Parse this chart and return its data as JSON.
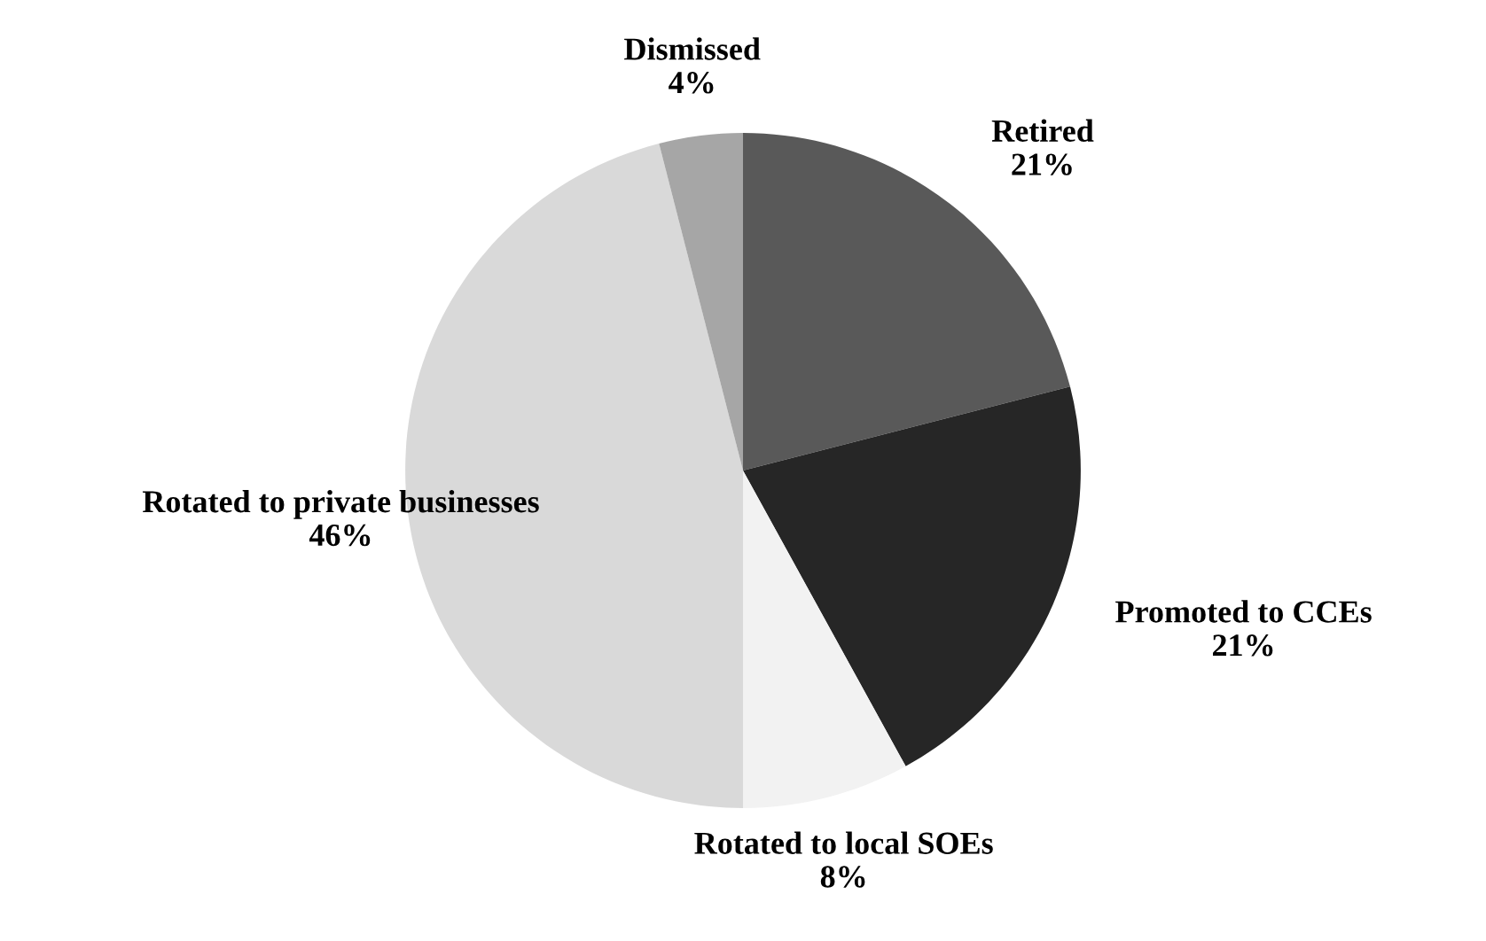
{
  "chart_data": {
    "type": "pie",
    "categories": [
      "Retired",
      "Promoted to CCEs",
      "Rotated to local SOEs",
      "Rotated to private businesses",
      "Dismissed"
    ],
    "values": [
      21,
      21,
      8,
      46,
      4
    ],
    "colors": [
      "#595959",
      "#262626",
      "#f2f2f2",
      "#d9d9d9",
      "#a6a6a6"
    ],
    "value_labels": [
      "21%",
      "21%",
      "8%",
      "46%",
      "4%"
    ],
    "legend": false
  }
}
